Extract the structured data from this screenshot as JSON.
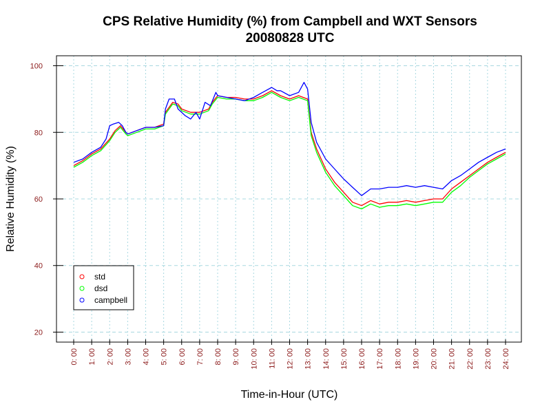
{
  "chart_data": {
    "type": "line",
    "title": "CPS Relative Humidity (%) from Campbell and WXT Sensors",
    "subtitle": "20080828  UTC",
    "xlabel": "Time-in-Hour (UTC)",
    "ylabel": "Relative Humidity (%)",
    "xlim": [
      0,
      24
    ],
    "ylim": [
      17,
      103
    ],
    "x_ticks": [
      0,
      1,
      2,
      3,
      4,
      5,
      6,
      7,
      8,
      9,
      10,
      11,
      12,
      13,
      14,
      15,
      16,
      17,
      18,
      19,
      20,
      21,
      22,
      23,
      24
    ],
    "x_tick_labels": [
      "0: 00",
      "1: 00",
      "2: 00",
      "3: 00",
      "4: 00",
      "5: 00",
      "6: 00",
      "7: 00",
      "8: 00",
      "9: 00",
      "10: 00",
      "11: 00",
      "12: 00",
      "13: 00",
      "14: 00",
      "15: 00",
      "16: 00",
      "17: 00",
      "18: 00",
      "19: 00",
      "20: 00",
      "21: 00",
      "22: 00",
      "23: 00",
      "24: 00"
    ],
    "y_ticks": [
      20,
      40,
      60,
      80,
      100
    ],
    "y_tick_labels": [
      "20",
      "40",
      "60",
      "80",
      "100"
    ],
    "grid": true,
    "legend_position": "bottom-left",
    "series": [
      {
        "name": "std",
        "color": "#ff0000",
        "points": [
          [
            0,
            70
          ],
          [
            0.5,
            71.5
          ],
          [
            1,
            73.5
          ],
          [
            1.5,
            75
          ],
          [
            2,
            78
          ],
          [
            2.3,
            80.5
          ],
          [
            2.6,
            82
          ],
          [
            2.9,
            80
          ],
          [
            3,
            79.5
          ],
          [
            3.5,
            80.5
          ],
          [
            4,
            81.5
          ],
          [
            4.5,
            81.5
          ],
          [
            5,
            82.5
          ],
          [
            5.1,
            86
          ],
          [
            5.5,
            89
          ],
          [
            5.8,
            88.5
          ],
          [
            6,
            87
          ],
          [
            6.5,
            86
          ],
          [
            7,
            86
          ],
          [
            7.5,
            87
          ],
          [
            7.7,
            89
          ],
          [
            8,
            91
          ],
          [
            8.5,
            90.5
          ],
          [
            9,
            90.5
          ],
          [
            9.5,
            90
          ],
          [
            10,
            90
          ],
          [
            10.5,
            91
          ],
          [
            11,
            92.5
          ],
          [
            11.5,
            91
          ],
          [
            12,
            90
          ],
          [
            12.5,
            91
          ],
          [
            13,
            90
          ],
          [
            13.2,
            80
          ],
          [
            13.5,
            75
          ],
          [
            14,
            69
          ],
          [
            14.5,
            65
          ],
          [
            15,
            62
          ],
          [
            15.5,
            59
          ],
          [
            16,
            58
          ],
          [
            16.5,
            59.5
          ],
          [
            17,
            58.5
          ],
          [
            17.5,
            59
          ],
          [
            18,
            59
          ],
          [
            18.5,
            59.5
          ],
          [
            19,
            59
          ],
          [
            19.5,
            59.5
          ],
          [
            20,
            60
          ],
          [
            20.5,
            60
          ],
          [
            21,
            63
          ],
          [
            21.5,
            65
          ],
          [
            22,
            67
          ],
          [
            22.5,
            69
          ],
          [
            23,
            71
          ],
          [
            23.5,
            72.5
          ],
          [
            24,
            74
          ]
        ]
      },
      {
        "name": "dsd",
        "color": "#00ff00",
        "points": [
          [
            0,
            69.5
          ],
          [
            0.5,
            71
          ],
          [
            1,
            73
          ],
          [
            1.5,
            74.5
          ],
          [
            2,
            77.5
          ],
          [
            2.3,
            80
          ],
          [
            2.6,
            81.5
          ],
          [
            2.9,
            79.5
          ],
          [
            3,
            79
          ],
          [
            3.5,
            80
          ],
          [
            4,
            81
          ],
          [
            4.5,
            81
          ],
          [
            5,
            82
          ],
          [
            5.1,
            85.5
          ],
          [
            5.5,
            88.5
          ],
          [
            5.8,
            88
          ],
          [
            6,
            86.5
          ],
          [
            6.5,
            85.5
          ],
          [
            7,
            85.5
          ],
          [
            7.5,
            86.5
          ],
          [
            7.7,
            88.5
          ],
          [
            8,
            90.5
          ],
          [
            8.5,
            90
          ],
          [
            9,
            90
          ],
          [
            9.5,
            89.5
          ],
          [
            10,
            89.5
          ],
          [
            10.5,
            90.5
          ],
          [
            11,
            92
          ],
          [
            11.5,
            90.5
          ],
          [
            12,
            89.5
          ],
          [
            12.5,
            90.5
          ],
          [
            13,
            89.5
          ],
          [
            13.2,
            79
          ],
          [
            13.5,
            74
          ],
          [
            14,
            68
          ],
          [
            14.5,
            64
          ],
          [
            15,
            61
          ],
          [
            15.5,
            58
          ],
          [
            16,
            57
          ],
          [
            16.5,
            58.5
          ],
          [
            17,
            57.5
          ],
          [
            17.5,
            58
          ],
          [
            18,
            58
          ],
          [
            18.5,
            58.5
          ],
          [
            19,
            58
          ],
          [
            19.5,
            58.5
          ],
          [
            20,
            59
          ],
          [
            20.5,
            59
          ],
          [
            21,
            62
          ],
          [
            21.5,
            64
          ],
          [
            22,
            66.5
          ],
          [
            22.5,
            68.5
          ],
          [
            23,
            70.5
          ],
          [
            23.5,
            72
          ],
          [
            24,
            73.5
          ]
        ]
      },
      {
        "name": "campbell",
        "color": "#0000ff",
        "points": [
          [
            0,
            71
          ],
          [
            0.5,
            72
          ],
          [
            1,
            74
          ],
          [
            1.5,
            75.5
          ],
          [
            1.8,
            78
          ],
          [
            2,
            82
          ],
          [
            2.2,
            82.5
          ],
          [
            2.5,
            83
          ],
          [
            2.7,
            82
          ],
          [
            2.9,
            80
          ],
          [
            3,
            79.5
          ],
          [
            3.5,
            80.5
          ],
          [
            4,
            81.5
          ],
          [
            4.5,
            81.5
          ],
          [
            5,
            82
          ],
          [
            5.1,
            87
          ],
          [
            5.3,
            90
          ],
          [
            5.6,
            90
          ],
          [
            5.8,
            87
          ],
          [
            6.2,
            85
          ],
          [
            6.5,
            84
          ],
          [
            6.8,
            86
          ],
          [
            7,
            84
          ],
          [
            7.3,
            89
          ],
          [
            7.6,
            88
          ],
          [
            7.9,
            92
          ],
          [
            8,
            91
          ],
          [
            8.5,
            90.5
          ],
          [
            9,
            90
          ],
          [
            9.5,
            89.5
          ],
          [
            10,
            90.5
          ],
          [
            10.5,
            92
          ],
          [
            11,
            93.5
          ],
          [
            11.3,
            92.5
          ],
          [
            11.5,
            92.5
          ],
          [
            12,
            91
          ],
          [
            12.5,
            92
          ],
          [
            12.8,
            95
          ],
          [
            13,
            93
          ],
          [
            13.2,
            83
          ],
          [
            13.5,
            77
          ],
          [
            14,
            72
          ],
          [
            14.5,
            69
          ],
          [
            15,
            66
          ],
          [
            15.5,
            63.5
          ],
          [
            16,
            61
          ],
          [
            16.5,
            63
          ],
          [
            17,
            63
          ],
          [
            17.5,
            63.5
          ],
          [
            18,
            63.5
          ],
          [
            18.5,
            64
          ],
          [
            19,
            63.5
          ],
          [
            19.5,
            64
          ],
          [
            20,
            63.5
          ],
          [
            20.5,
            63
          ],
          [
            21,
            65.5
          ],
          [
            21.5,
            67
          ],
          [
            22,
            69
          ],
          [
            22.5,
            71
          ],
          [
            23,
            72.5
          ],
          [
            23.5,
            74
          ],
          [
            24,
            75
          ]
        ]
      }
    ]
  }
}
